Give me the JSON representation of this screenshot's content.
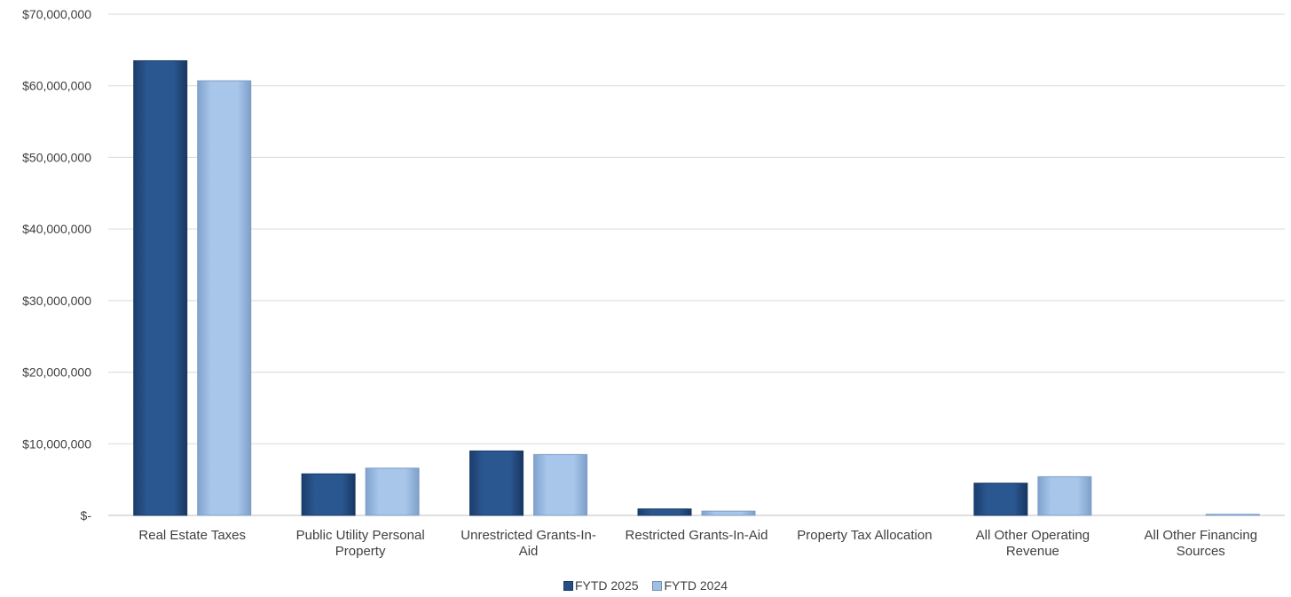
{
  "colors": {
    "fytd_2025": "#254e86",
    "fytd_2024": "#9fbfe4",
    "grid": "#d9d9d9",
    "axis": "#bfbfbf",
    "text": "#404040"
  },
  "chart_data": {
    "type": "bar",
    "title": "",
    "xlabel": "",
    "ylabel": "",
    "ylim": [
      0,
      70000000
    ],
    "y_ticks": [
      {
        "value": 70000000,
        "label": "$70,000,000"
      },
      {
        "value": 60000000,
        "label": "$60,000,000"
      },
      {
        "value": 50000000,
        "label": "$50,000,000"
      },
      {
        "value": 40000000,
        "label": "$40,000,000"
      },
      {
        "value": 30000000,
        "label": "$30,000,000"
      },
      {
        "value": 20000000,
        "label": "$20,000,000"
      },
      {
        "value": 10000000,
        "label": "$10,000,000"
      },
      {
        "value": 0,
        "label": "$-"
      }
    ],
    "grid": true,
    "legend_placement": "bottom",
    "categories": [
      [
        "Real Estate Taxes"
      ],
      [
        "Public Utility Personal",
        "Property"
      ],
      [
        "Unrestricted Grants-In-",
        "Aid"
      ],
      [
        "Restricted Grants-In-Aid"
      ],
      [
        "Property Tax Allocation"
      ],
      [
        "All Other Operating",
        "Revenue"
      ],
      [
        "All Other Financing",
        "Sources"
      ]
    ],
    "series": [
      {
        "name": "FYTD 2025",
        "color": "#254e86",
        "values": [
          63500000,
          5800000,
          9000000,
          900000,
          0,
          4500000,
          0
        ]
      },
      {
        "name": "FYTD 2024",
        "color": "#9fbfe4",
        "values": [
          60700000,
          6600000,
          8500000,
          600000,
          0,
          5400000,
          150000
        ]
      }
    ]
  }
}
